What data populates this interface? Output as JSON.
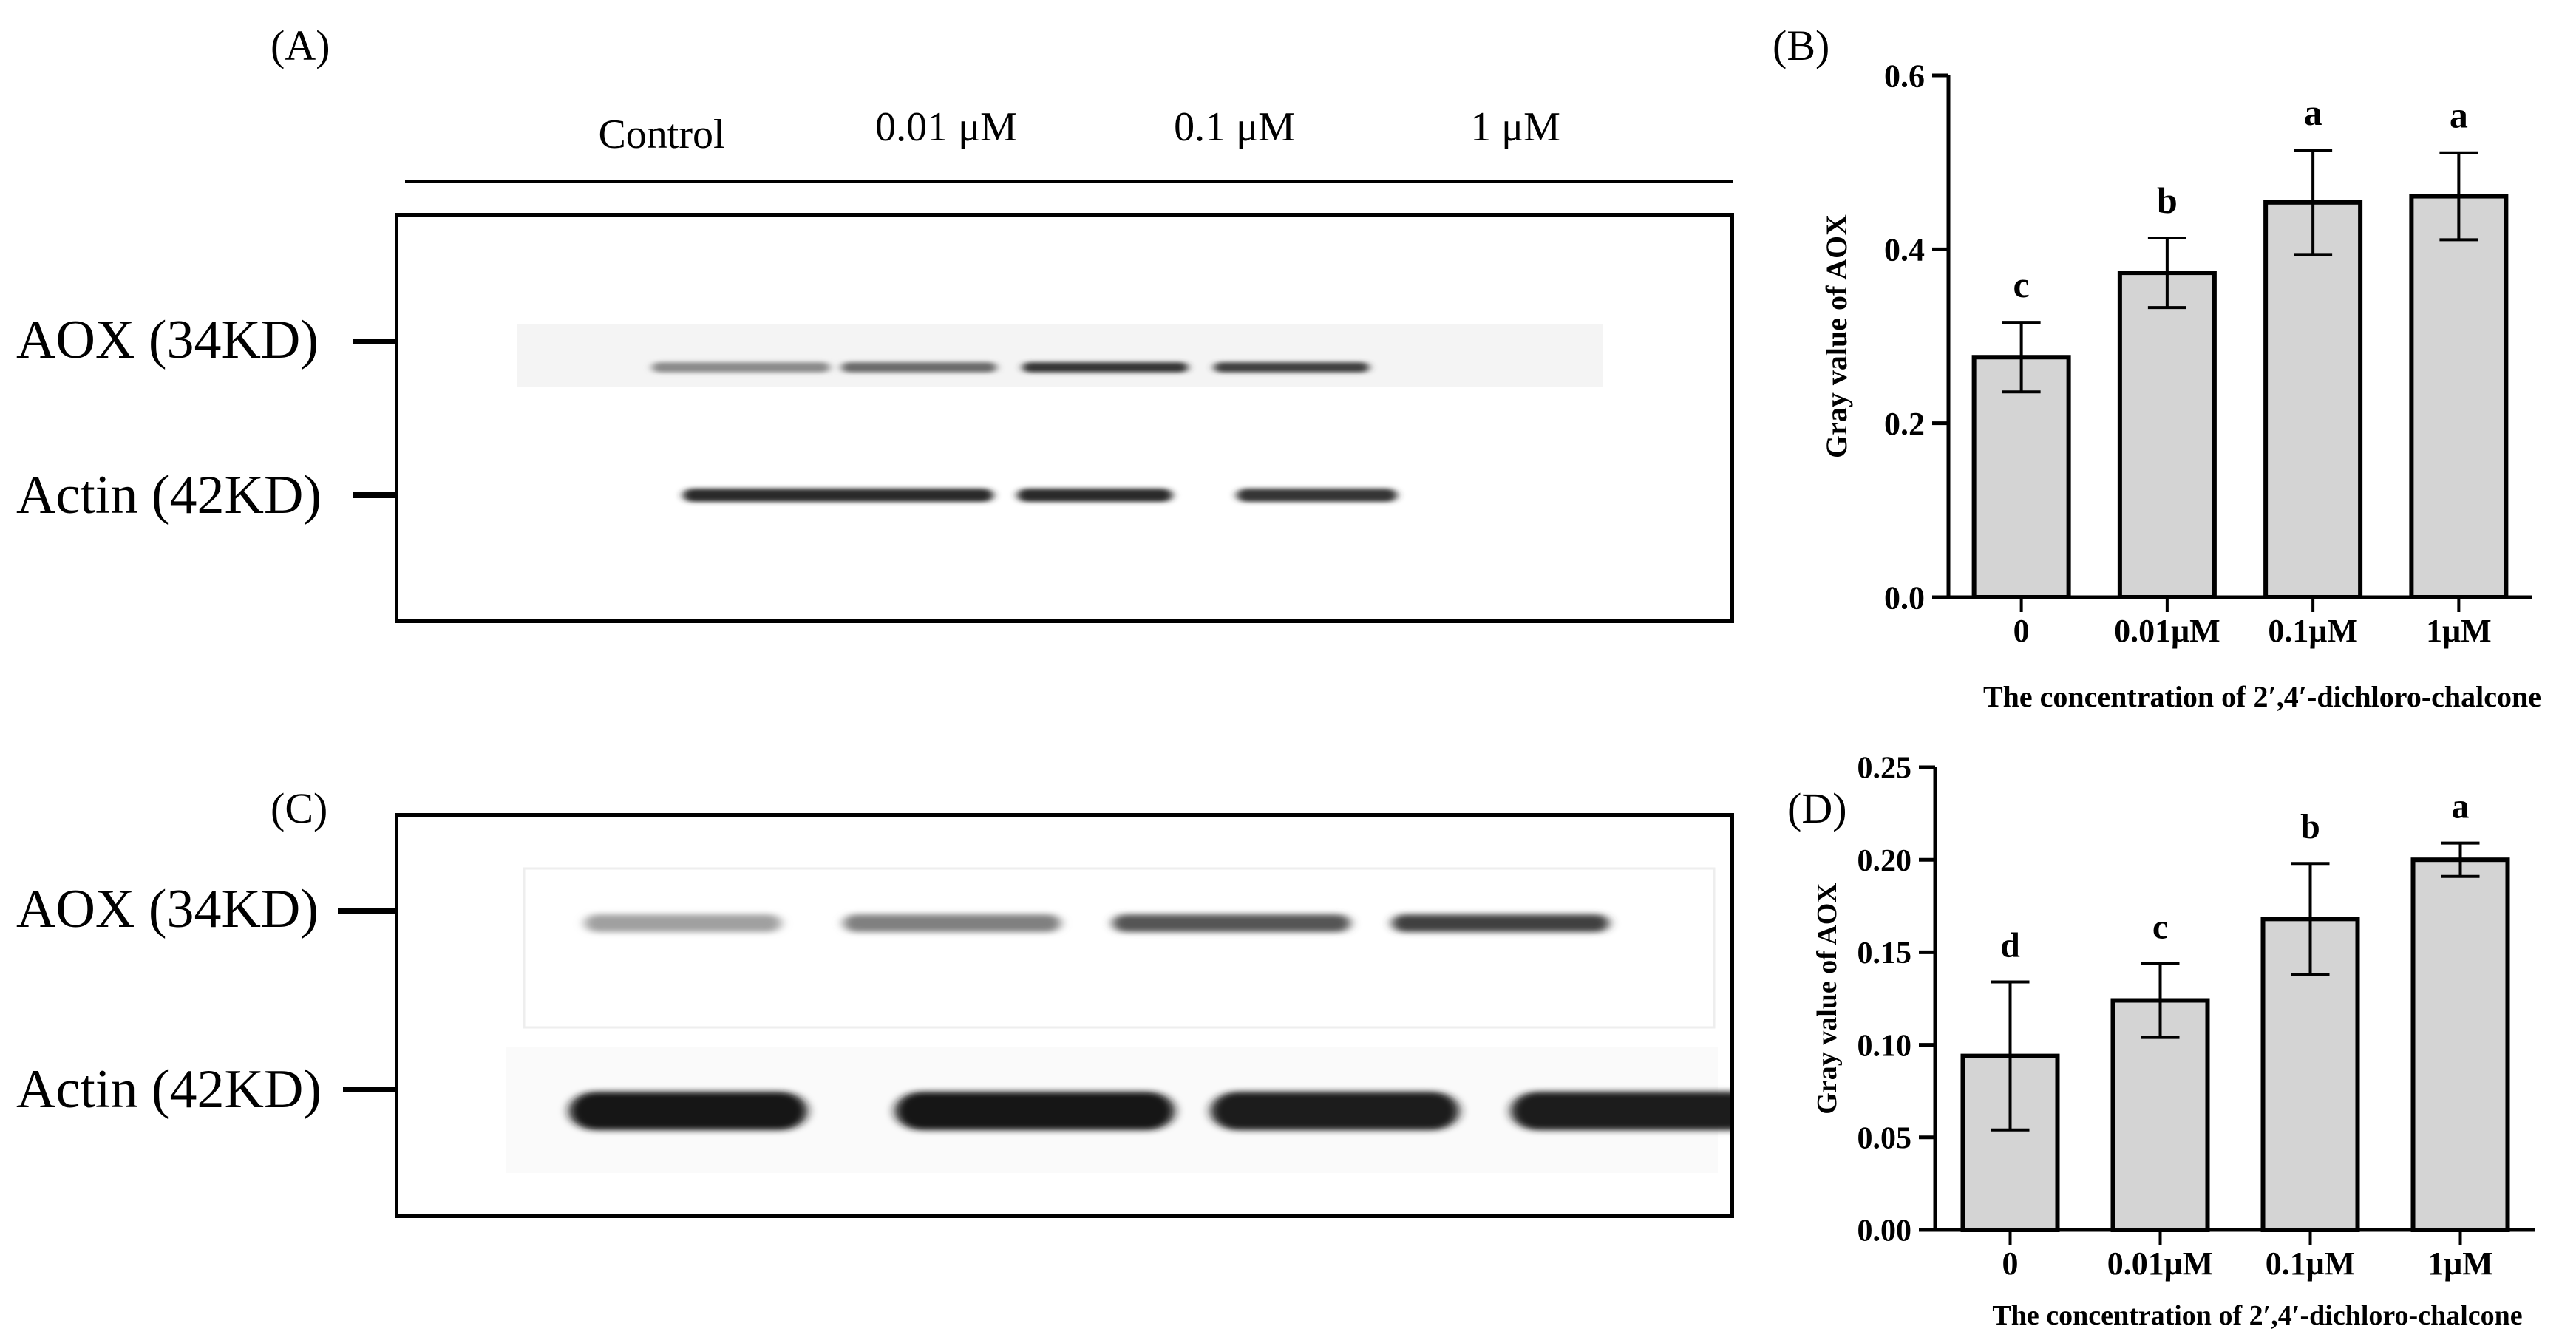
{
  "panels": {
    "A": "(A)",
    "B": "(B)",
    "C": "(C)",
    "D": "(D)"
  },
  "blots": {
    "lanes": [
      "Control",
      "0.01 μM",
      "0.1 μM",
      "1 μM"
    ],
    "band_top": "AOX (34KD)",
    "band_bottom": "Actin (42KD)",
    "A_band_intensity": {
      "aox": [
        0.45,
        0.6,
        0.85,
        0.8
      ],
      "actin": [
        0.9,
        0.9,
        0.9,
        0.85
      ]
    },
    "C_band_intensity": {
      "aox": [
        0.35,
        0.5,
        0.7,
        0.8
      ],
      "actin": [
        1.0,
        1.0,
        0.95,
        0.95
      ]
    }
  },
  "chart_data": [
    {
      "type": "bar",
      "panel": "B",
      "categories": [
        "0",
        "0.01μM",
        "0.1μM",
        "1μM"
      ],
      "values": [
        0.276,
        0.373,
        0.454,
        0.461
      ],
      "errors": [
        0.04,
        0.04,
        0.06,
        0.05
      ],
      "significance": [
        "c",
        "b",
        "a",
        "a"
      ],
      "ylabel": "Gray value of AOX",
      "xlabel": "The concentration of 2′,4′-dichloro-chalcone",
      "ylim": [
        0,
        0.6
      ],
      "yticks": [
        0.0,
        0.2,
        0.4,
        0.6
      ],
      "ytick_labels": [
        "0.0",
        "0.2",
        "0.4",
        "0.6"
      ],
      "bar_color": "#d4d4d4"
    },
    {
      "type": "bar",
      "panel": "D",
      "categories": [
        "0",
        "0.01μM",
        "0.1μM",
        "1μM"
      ],
      "values": [
        0.094,
        0.124,
        0.168,
        0.2
      ],
      "errors": [
        0.04,
        0.02,
        0.03,
        0.009
      ],
      "significance": [
        "d",
        "c",
        "b",
        "a"
      ],
      "ylabel": "Gray value of AOX",
      "xlabel": "The concentration of 2′,4′-dichloro-chalcone",
      "ylim": [
        0,
        0.25
      ],
      "yticks": [
        0.0,
        0.05,
        0.1,
        0.15,
        0.2,
        0.25
      ],
      "ytick_labels": [
        "0.00",
        "0.05",
        "0.10",
        "0.15",
        "0.20",
        "0.25"
      ],
      "bar_color": "#d4d4d4"
    }
  ]
}
